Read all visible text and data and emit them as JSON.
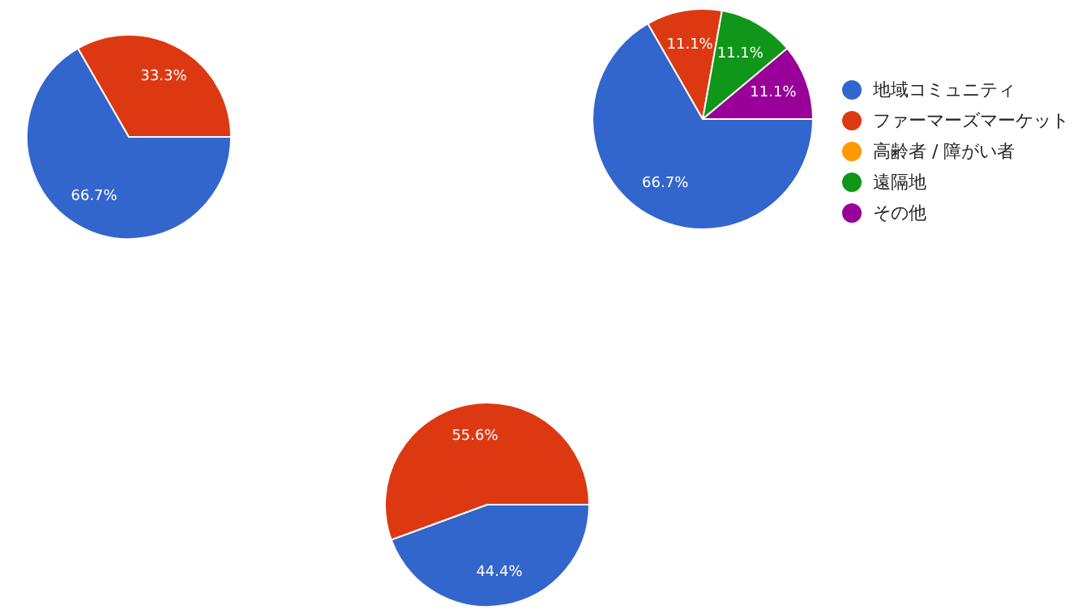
{
  "chart_data": [
    {
      "type": "pie",
      "categories": [
        null,
        null
      ],
      "values": [
        66.7,
        33.3
      ],
      "colors": [
        "#3366cc",
        "#dc3912"
      ],
      "value_labels": [
        "66.7%",
        "33.3%"
      ]
    },
    {
      "type": "pie",
      "categories": [
        "地域コミュニティ",
        "ファーマーズマーケット",
        "高齢者 / 障がい者",
        "遠隔地",
        "その他"
      ],
      "values": [
        66.7,
        11.1,
        0,
        11.1,
        11.1
      ],
      "colors": [
        "#3366cc",
        "#dc3912",
        "#ff9900",
        "#109618",
        "#990099"
      ],
      "value_labels": [
        "66.7%",
        "11.1%",
        null,
        "11.1%",
        "11.1%"
      ],
      "legend": "right"
    },
    {
      "type": "pie",
      "categories": [
        null,
        null
      ],
      "values": [
        44.4,
        55.6
      ],
      "colors": [
        "#3366cc",
        "#dc3912"
      ],
      "value_labels": [
        "44.4%",
        "55.6%"
      ]
    }
  ]
}
